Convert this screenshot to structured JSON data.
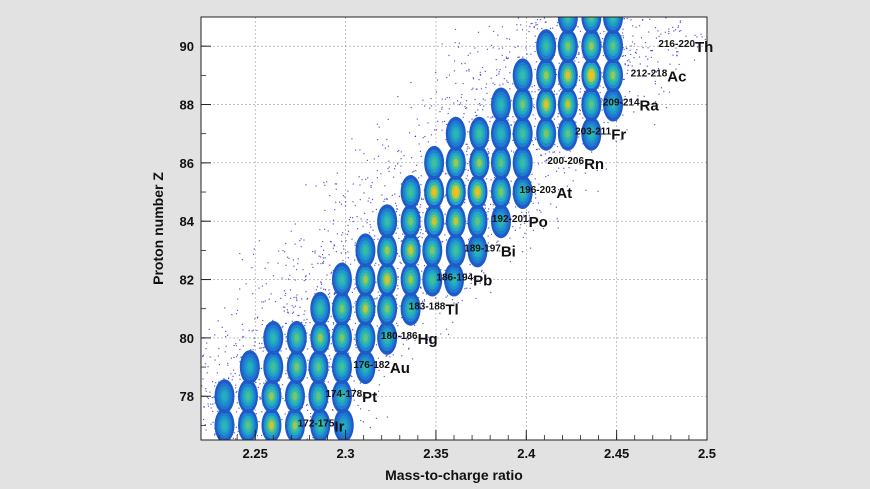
{
  "chart_data": {
    "type": "heatmap",
    "title": "",
    "xlabel": "Mass-to-charge ratio",
    "ylabel": "Proton number Z",
    "xlim": [
      2.22,
      2.5
    ],
    "ylim": [
      76.5,
      91
    ],
    "x_ticks": [
      2.25,
      2.3,
      2.35,
      2.4,
      2.45,
      2.5
    ],
    "x_tick_labels": [
      "2.25",
      "2.3",
      "2.35",
      "2.4",
      "2.45",
      "2.5"
    ],
    "y_ticks": [
      78,
      80,
      82,
      84,
      86,
      88,
      90
    ],
    "y_tick_labels": [
      "78",
      "80",
      "82",
      "84",
      "86",
      "88",
      "90"
    ],
    "grid": true,
    "colormap": [
      "#1a1ab4",
      "#1f6fd0",
      "#1fa8c8",
      "#3fc09a",
      "#b8c83a",
      "#f0c020"
    ],
    "element_labels": [
      {
        "mass_range": "172-175",
        "element": "Ir",
        "z": 77
      },
      {
        "mass_range": "174-178",
        "element": "Pt",
        "z": 78
      },
      {
        "mass_range": "176-182",
        "element": "Au",
        "z": 79
      },
      {
        "mass_range": "180-186",
        "element": "Hg",
        "z": 80
      },
      {
        "mass_range": "183-188",
        "element": "Tl",
        "z": 81
      },
      {
        "mass_range": "186-194",
        "element": "Pb",
        "z": 82
      },
      {
        "mass_range": "189-197",
        "element": "Bi",
        "z": 83
      },
      {
        "mass_range": "192-201",
        "element": "Po",
        "z": 84
      },
      {
        "mass_range": "196-203",
        "element": "At",
        "z": 85
      },
      {
        "mass_range": "200-206",
        "element": "Rn",
        "z": 86
      },
      {
        "mass_range": "203-211",
        "element": "Fr",
        "z": 87
      },
      {
        "mass_range": "209-214",
        "element": "Ra",
        "z": 88
      },
      {
        "mass_range": "212-218",
        "element": "Ac",
        "z": 89
      },
      {
        "mass_range": "216-220",
        "element": "Th",
        "z": 90
      }
    ],
    "blobs": [
      {
        "z": 77,
        "x": 2.233,
        "i": 0.35
      },
      {
        "z": 77,
        "x": 2.246,
        "i": 0.5
      },
      {
        "z": 77,
        "x": 2.259,
        "i": 0.7
      },
      {
        "z": 77,
        "x": 2.272,
        "i": 0.6
      },
      {
        "z": 77,
        "x": 2.286,
        "i": 0.45
      },
      {
        "z": 77,
        "x": 2.299,
        "i": 0.3
      },
      {
        "z": 78,
        "x": 2.233,
        "i": 0.3
      },
      {
        "z": 78,
        "x": 2.246,
        "i": 0.45
      },
      {
        "z": 78,
        "x": 2.259,
        "i": 0.6
      },
      {
        "z": 78,
        "x": 2.272,
        "i": 0.55
      },
      {
        "z": 78,
        "x": 2.285,
        "i": 0.5
      },
      {
        "z": 78,
        "x": 2.298,
        "i": 0.4
      },
      {
        "z": 79,
        "x": 2.247,
        "i": 0.3
      },
      {
        "z": 79,
        "x": 2.26,
        "i": 0.45
      },
      {
        "z": 79,
        "x": 2.273,
        "i": 0.55
      },
      {
        "z": 79,
        "x": 2.285,
        "i": 0.5
      },
      {
        "z": 79,
        "x": 2.298,
        "i": 0.45
      },
      {
        "z": 79,
        "x": 2.311,
        "i": 0.35
      },
      {
        "z": 80,
        "x": 2.26,
        "i": 0.35
      },
      {
        "z": 80,
        "x": 2.273,
        "i": 0.5
      },
      {
        "z": 80,
        "x": 2.286,
        "i": 0.6
      },
      {
        "z": 80,
        "x": 2.298,
        "i": 0.55
      },
      {
        "z": 80,
        "x": 2.311,
        "i": 0.5
      },
      {
        "z": 80,
        "x": 2.323,
        "i": 0.4
      },
      {
        "z": 81,
        "x": 2.286,
        "i": 0.4
      },
      {
        "z": 81,
        "x": 2.298,
        "i": 0.55
      },
      {
        "z": 81,
        "x": 2.311,
        "i": 0.65
      },
      {
        "z": 81,
        "x": 2.323,
        "i": 0.55
      },
      {
        "z": 81,
        "x": 2.336,
        "i": 0.45
      },
      {
        "z": 82,
        "x": 2.298,
        "i": 0.4
      },
      {
        "z": 82,
        "x": 2.311,
        "i": 0.6
      },
      {
        "z": 82,
        "x": 2.323,
        "i": 0.75
      },
      {
        "z": 82,
        "x": 2.336,
        "i": 0.6
      },
      {
        "z": 82,
        "x": 2.348,
        "i": 0.45
      },
      {
        "z": 82,
        "x": 2.36,
        "i": 0.35
      },
      {
        "z": 83,
        "x": 2.311,
        "i": 0.4
      },
      {
        "z": 83,
        "x": 2.323,
        "i": 0.6
      },
      {
        "z": 83,
        "x": 2.336,
        "i": 0.7
      },
      {
        "z": 83,
        "x": 2.348,
        "i": 0.55
      },
      {
        "z": 83,
        "x": 2.361,
        "i": 0.45
      },
      {
        "z": 83,
        "x": 2.373,
        "i": 0.35
      },
      {
        "z": 84,
        "x": 2.323,
        "i": 0.4
      },
      {
        "z": 84,
        "x": 2.336,
        "i": 0.55
      },
      {
        "z": 84,
        "x": 2.349,
        "i": 0.7
      },
      {
        "z": 84,
        "x": 2.361,
        "i": 0.65
      },
      {
        "z": 84,
        "x": 2.373,
        "i": 0.5
      },
      {
        "z": 84,
        "x": 2.386,
        "i": 0.35
      },
      {
        "z": 85,
        "x": 2.336,
        "i": 0.45
      },
      {
        "z": 85,
        "x": 2.349,
        "i": 0.8
      },
      {
        "z": 85,
        "x": 2.361,
        "i": 0.95
      },
      {
        "z": 85,
        "x": 2.373,
        "i": 0.8
      },
      {
        "z": 85,
        "x": 2.386,
        "i": 0.55
      },
      {
        "z": 85,
        "x": 2.398,
        "i": 0.4
      },
      {
        "z": 86,
        "x": 2.349,
        "i": 0.45
      },
      {
        "z": 86,
        "x": 2.361,
        "i": 0.6
      },
      {
        "z": 86,
        "x": 2.374,
        "i": 0.6
      },
      {
        "z": 86,
        "x": 2.386,
        "i": 0.5
      },
      {
        "z": 86,
        "x": 2.398,
        "i": 0.4
      },
      {
        "z": 87,
        "x": 2.361,
        "i": 0.35
      },
      {
        "z": 87,
        "x": 2.374,
        "i": 0.45
      },
      {
        "z": 87,
        "x": 2.386,
        "i": 0.35
      },
      {
        "z": 87,
        "x": 2.398,
        "i": 0.45
      },
      {
        "z": 87,
        "x": 2.411,
        "i": 0.55
      },
      {
        "z": 87,
        "x": 2.423,
        "i": 0.5
      },
      {
        "z": 87,
        "x": 2.436,
        "i": 0.35
      },
      {
        "z": 88,
        "x": 2.386,
        "i": 0.35
      },
      {
        "z": 88,
        "x": 2.398,
        "i": 0.55
      },
      {
        "z": 88,
        "x": 2.411,
        "i": 0.75
      },
      {
        "z": 88,
        "x": 2.423,
        "i": 0.65
      },
      {
        "z": 88,
        "x": 2.436,
        "i": 0.5
      },
      {
        "z": 88,
        "x": 2.448,
        "i": 0.35
      },
      {
        "z": 89,
        "x": 2.398,
        "i": 0.4
      },
      {
        "z": 89,
        "x": 2.411,
        "i": 0.6
      },
      {
        "z": 89,
        "x": 2.423,
        "i": 0.75
      },
      {
        "z": 89,
        "x": 2.436,
        "i": 0.9
      },
      {
        "z": 89,
        "x": 2.448,
        "i": 0.6
      },
      {
        "z": 90,
        "x": 2.411,
        "i": 0.4
      },
      {
        "z": 90,
        "x": 2.423,
        "i": 0.55
      },
      {
        "z": 90,
        "x": 2.436,
        "i": 0.6
      },
      {
        "z": 90,
        "x": 2.448,
        "i": 0.5
      },
      {
        "z": 91,
        "x": 2.423,
        "i": 0.4
      },
      {
        "z": 91,
        "x": 2.436,
        "i": 0.5
      },
      {
        "z": 91,
        "x": 2.448,
        "i": 0.4
      }
    ]
  }
}
